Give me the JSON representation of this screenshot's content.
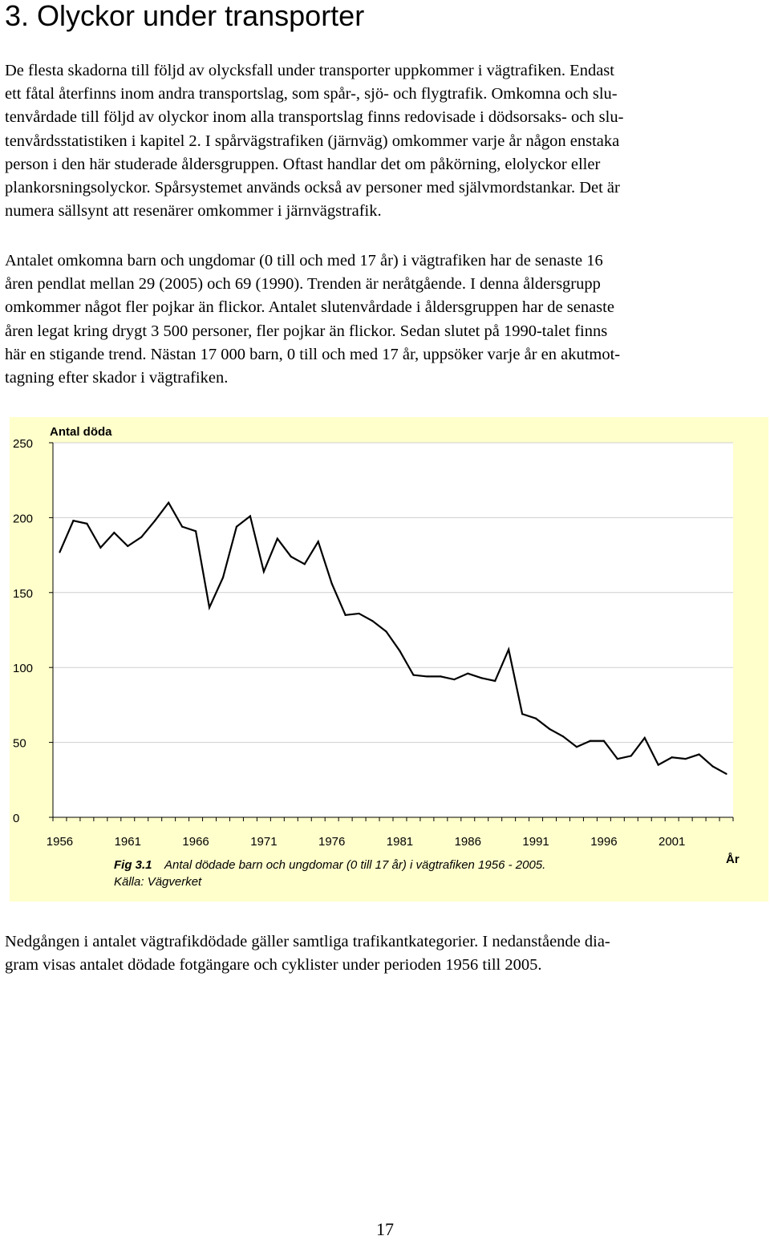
{
  "heading": "3. Olyckor under transporter",
  "paragraphs": [
    {
      "lines": [
        "De flesta skadorna till följd av olycksfall under transporter uppkommer i vägtrafiken. Endast",
        "ett fåtal återfinns inom andra transportslag, som spår-, sjö- och flygtrafik. Omkomna och slu-",
        "tenvårdade till följd av olyckor inom alla transportslag finns redovisade i dödsorsaks- och slu-",
        "tenvårdsstatistiken i kapitel 2. I spårvägstrafiken (järnväg) omkommer varje år någon enstaka",
        "person i den här studerade åldersgruppen. Oftast handlar det om påkörning, elolyckor eller",
        "plankorsningsolyckor. Spårsystemet används också av personer med självmordstankar. Det är",
        "numera sällsynt att resenärer omkommer i järnvägstrafik."
      ]
    },
    {
      "lines": [
        "Antalet omkomna barn och ungdomar (0 till och med 17 år) i vägtrafiken har de senaste 16",
        "åren pendlat mellan 29 (2005) och 69 (1990). Trenden är neråtgående. I denna åldersgrupp",
        "omkommer något fler pojkar än flickor. Antalet slutenvårdade i åldersgruppen har de senaste",
        "åren legat kring drygt 3 500 personer, fler pojkar än flickor. Sedan slutet på 1990-talet finns",
        "här en stigande trend. Nästan 17 000 barn, 0 till och med 17 år, uppsöker varje år en akutmot-",
        "tagning efter skador i vägtrafiken."
      ]
    },
    {
      "lines": [
        "Nedgången i antalet vägtrafikdödade gäller samtliga trafikantkategorier. I nedanstående dia-",
        "gram visas antalet dödade fotgängare och cyklister under perioden 1956 till 2005."
      ]
    }
  ],
  "chart_data": {
    "type": "line",
    "ylabel": "Antal döda",
    "xlabel": "År",
    "ylim": [
      0,
      250
    ],
    "yticks": [
      0,
      50,
      100,
      150,
      200,
      250
    ],
    "xtick_labels": [
      "1956",
      "1961",
      "1966",
      "1971",
      "1976",
      "1981",
      "1986",
      "1991",
      "1996",
      "2001"
    ],
    "grid": "horizontal",
    "line_color": "#000000",
    "background_color": "#ffffcc",
    "x": [
      1956,
      1957,
      1958,
      1959,
      1960,
      1961,
      1962,
      1963,
      1964,
      1965,
      1966,
      1967,
      1968,
      1969,
      1970,
      1971,
      1972,
      1973,
      1974,
      1975,
      1976,
      1977,
      1978,
      1979,
      1980,
      1981,
      1982,
      1983,
      1984,
      1985,
      1986,
      1987,
      1988,
      1989,
      1990,
      1991,
      1992,
      1993,
      1994,
      1995,
      1996,
      1997,
      1998,
      1999,
      2000,
      2001,
      2002,
      2003,
      2004,
      2005
    ],
    "values": [
      177,
      198,
      196,
      180,
      190,
      181,
      187,
      198,
      210,
      194,
      191,
      140,
      160,
      194,
      201,
      164,
      186,
      174,
      169,
      184,
      156,
      135,
      136,
      131,
      124,
      111,
      95,
      94,
      94,
      92,
      96,
      93,
      91,
      112,
      69,
      66,
      59,
      54,
      47,
      51,
      51,
      39,
      41,
      53,
      35,
      40,
      39,
      42,
      34,
      29
    ],
    "caption_label": "Fig 3.1",
    "caption_text": "Antal dödade barn och ungdomar (0 till 17 år) i vägtrafiken 1956 - 2005.",
    "source": "Källa: Vägverket"
  },
  "page_number": "17"
}
